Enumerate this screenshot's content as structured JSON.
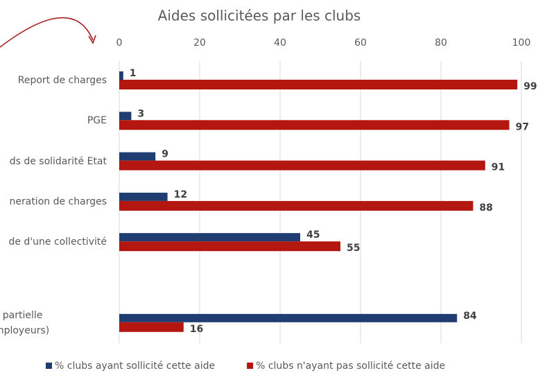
{
  "chart_data": {
    "type": "bar",
    "orientation": "horizontal",
    "title": "Aides sollicitées par les clubs",
    "categories": [
      "Report de charges",
      "PGE",
      "ds de solidarité Etat",
      "neration de charges",
      "de d'une collectivité",
      null,
      "Activité partielle\n(clubs employeurs)"
    ],
    "series": [
      {
        "name": "% clubs ayant sollicité cette aide",
        "color": "#1f3d70",
        "values": [
          1,
          3,
          9,
          12,
          45,
          null,
          84
        ]
      },
      {
        "name": "% clubs n'ayant pas sollicité cette aide",
        "color": "#b3170f",
        "values": [
          99,
          97,
          91,
          88,
          55,
          null,
          16
        ]
      }
    ],
    "xlim": [
      0,
      100
    ],
    "xticks": [
      0,
      20,
      40,
      60,
      80,
      100
    ],
    "grid": true,
    "legend": "bottom"
  }
}
